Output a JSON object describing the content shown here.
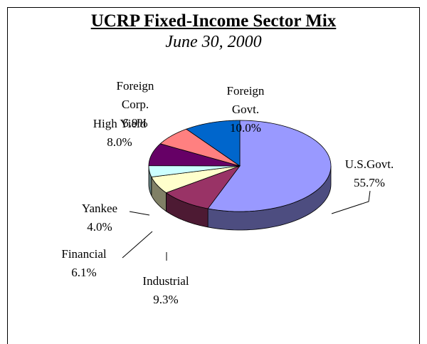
{
  "chart_data": {
    "type": "pie3d",
    "title": "UCRP Fixed-Income Sector Mix",
    "subtitle": "June 30, 2000",
    "categories": [
      "U.S.Govt.",
      "Industrial",
      "Financial",
      "Yankee",
      "High Yield",
      "Foreign Corp.",
      "Foreign Govt."
    ],
    "values": [
      55.7,
      9.3,
      6.1,
      4.0,
      8.0,
      6.9,
      10.0
    ],
    "value_labels": [
      "55.7%",
      "9.3%",
      "6.1%",
      "4.0%",
      "8.0%",
      "6.9%",
      "10.0%"
    ],
    "colors": [
      "#9999ff",
      "#993366",
      "#ffffcc",
      "#ccffff",
      "#660066",
      "#ff8080",
      "#0066cc"
    ]
  }
}
